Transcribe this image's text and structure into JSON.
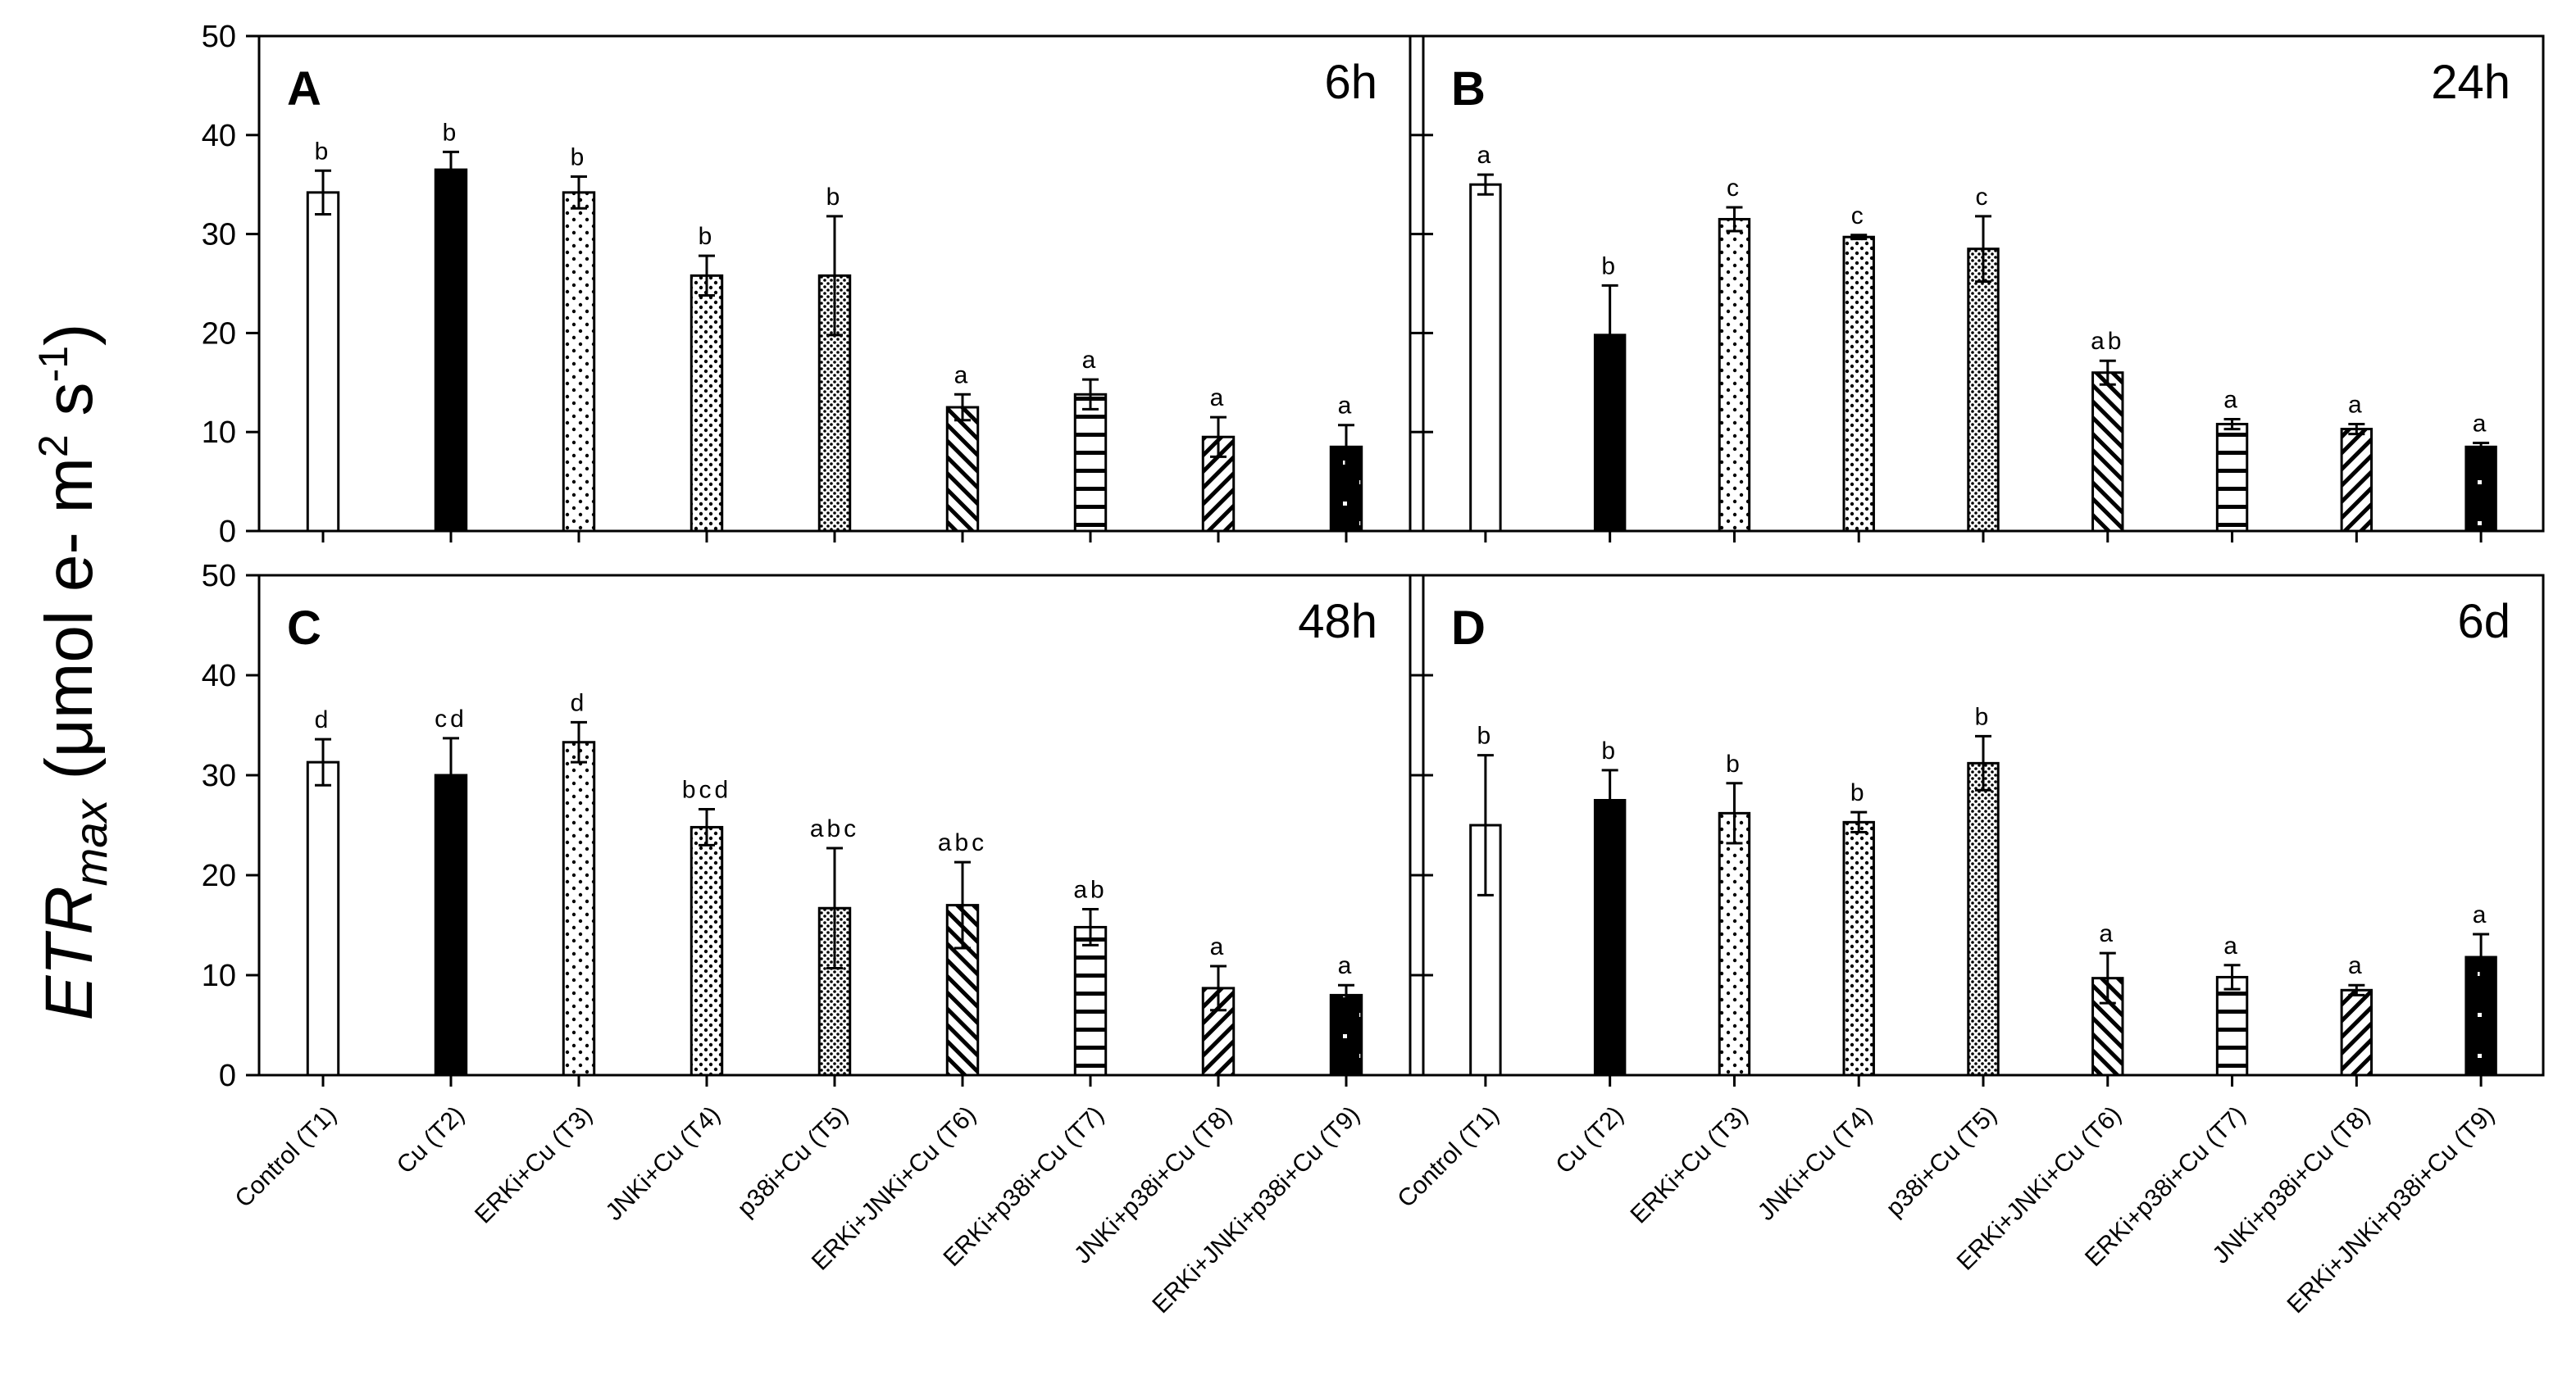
{
  "figure": {
    "ylabel_main": "ETR",
    "ylabel_sub": "max",
    "ylabel_units": "(μmol e- m",
    "ylabel_sup1": "2",
    "ylabel_mid": " s",
    "ylabel_sup2": "-1",
    "ylabel_end": ")"
  },
  "chart_data": [
    {
      "type": "bar",
      "panel": "A",
      "time": "6h",
      "ylim": [
        0,
        50
      ],
      "yticks": [
        0,
        10,
        20,
        30,
        40,
        50
      ],
      "categories": [
        "Control (T1)",
        "Cu (T2)",
        "ERKi+Cu (T3)",
        "JNKi+Cu (T4)",
        "p38i+Cu (T5)",
        "ERKi+JNKi+Cu (T6)",
        "ERKi+p38i+Cu (T7)",
        "JNKi+p38i+Cu (T8)",
        "ERKi+JNKi+p38i+Cu (T9)"
      ],
      "values": [
        34.2,
        36.5,
        34.2,
        25.8,
        25.8,
        12.5,
        13.8,
        9.5,
        8.5
      ],
      "errors": [
        2.2,
        1.8,
        1.6,
        2.0,
        6.0,
        1.3,
        1.5,
        2.0,
        2.2
      ],
      "letters": [
        "b",
        "b",
        "b",
        "b",
        "b",
        "a",
        "a",
        "a",
        "a"
      ]
    },
    {
      "type": "bar",
      "panel": "B",
      "time": "24h",
      "ylim": [
        0,
        50
      ],
      "yticks": [
        0,
        10,
        20,
        30,
        40,
        50
      ],
      "categories": [
        "Control (T1)",
        "Cu (T2)",
        "ERKi+Cu (T3)",
        "JNKi+Cu (T4)",
        "p38i+Cu (T5)",
        "ERKi+JNKi+Cu (T6)",
        "ERKi+p38i+Cu (T7)",
        "JNKi+p38i+Cu (T8)",
        "ERKi+JNKi+p38i+Cu (T9)"
      ],
      "values": [
        35.0,
        19.8,
        31.5,
        29.7,
        28.5,
        16.0,
        10.8,
        10.3,
        8.5
      ],
      "errors": [
        1.0,
        5.0,
        1.2,
        0.2,
        3.3,
        1.2,
        0.5,
        0.5,
        0.4
      ],
      "letters": [
        "a",
        "b",
        "c",
        "c",
        "c",
        "ab",
        "a",
        "a",
        "a"
      ]
    },
    {
      "type": "bar",
      "panel": "C",
      "time": "48h",
      "ylim": [
        0,
        50
      ],
      "yticks": [
        0,
        10,
        20,
        30,
        40,
        50
      ],
      "categories": [
        "Control (T1)",
        "Cu (T2)",
        "ERKi+Cu (T3)",
        "JNKi+Cu (T4)",
        "p38i+Cu (T5)",
        "ERKi+JNKi+Cu (T6)",
        "ERKi+p38i+Cu (T7)",
        "JNKi+p38i+Cu (T8)",
        "ERKi+JNKi+p38i+Cu (T9)"
      ],
      "values": [
        31.3,
        30.0,
        33.3,
        24.8,
        16.7,
        17.0,
        14.8,
        8.7,
        8.0
      ],
      "errors": [
        2.3,
        3.7,
        2.0,
        1.8,
        6.0,
        4.3,
        1.8,
        2.2,
        1.0
      ],
      "letters": [
        "d",
        "cd",
        "d",
        "bcd",
        "abc",
        "abc",
        "ab",
        "a",
        "a"
      ]
    },
    {
      "type": "bar",
      "panel": "D",
      "time": "6d",
      "ylim": [
        0,
        50
      ],
      "yticks": [
        0,
        10,
        20,
        30,
        40,
        50
      ],
      "categories": [
        "Control (T1)",
        "Cu (T2)",
        "ERKi+Cu (T3)",
        "JNKi+Cu (T4)",
        "p38i+Cu (T5)",
        "ERKi+JNKi+Cu (T6)",
        "ERKi+p38i+Cu (T7)",
        "JNKi+p38i+Cu (T8)",
        "ERKi+JNKi+p38i+Cu (T9)"
      ],
      "values": [
        25.0,
        27.5,
        26.2,
        25.3,
        31.2,
        9.7,
        9.8,
        8.5,
        11.8
      ],
      "errors": [
        7.0,
        3.0,
        3.0,
        1.0,
        2.7,
        2.5,
        1.2,
        0.5,
        2.3
      ],
      "letters": [
        "b",
        "b",
        "b",
        "b",
        "b",
        "a",
        "a",
        "a",
        "a"
      ]
    }
  ],
  "patterns": [
    "white",
    "black",
    "sparse-dots",
    "dots",
    "dense-dots",
    "backslash",
    "horizontal",
    "slash",
    "black-dots"
  ]
}
